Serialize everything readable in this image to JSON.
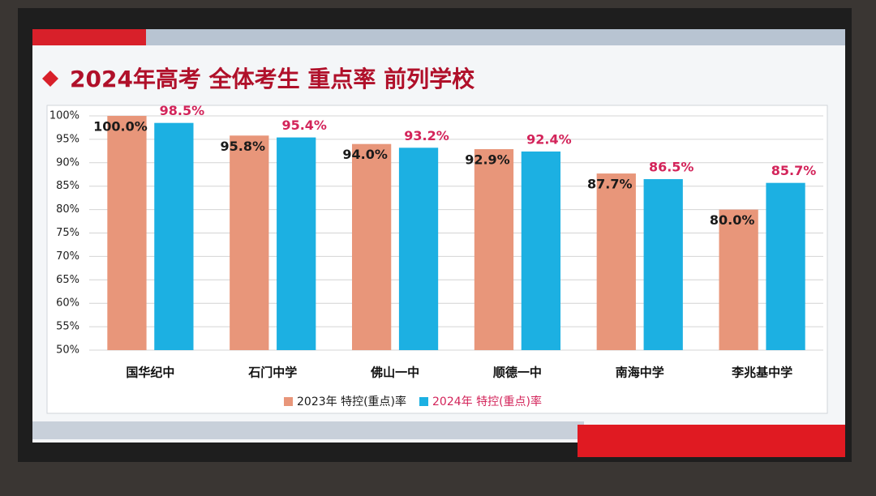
{
  "chart_data": {
    "type": "bar",
    "title": "2024年高考 全体考生 重点率 前列学校",
    "categories": [
      "国华纪中",
      "石门中学",
      "佛山一中",
      "顺德一中",
      "南海中学",
      "李兆基中学"
    ],
    "series": [
      {
        "name": "2023年 特控(重点)率",
        "color": "#e8967a",
        "label_color": "#1a1a1a",
        "values": [
          100.0,
          95.8,
          94.0,
          92.9,
          87.7,
          80.0
        ],
        "value_labels": [
          "100.0%",
          "95.8%",
          "94.0%",
          "92.9%",
          "87.7%",
          "80.0%"
        ]
      },
      {
        "name": "2024年 特控(重点)率",
        "color": "#1cb0e2",
        "label_color": "#d3245a",
        "values": [
          98.5,
          95.4,
          93.2,
          92.4,
          86.5,
          85.7
        ],
        "value_labels": [
          "98.5%",
          "95.4%",
          "93.2%",
          "92.4%",
          "86.5%",
          "85.7%"
        ]
      }
    ],
    "ylim": [
      50,
      100
    ],
    "yticks": [
      {
        "value": 50,
        "label": "50%"
      },
      {
        "value": 55,
        "label": "55%"
      },
      {
        "value": 60,
        "label": "60%"
      },
      {
        "value": 65,
        "label": "65%"
      },
      {
        "value": 70,
        "label": "70%"
      },
      {
        "value": 75,
        "label": "75%"
      },
      {
        "value": 80,
        "label": "80%"
      },
      {
        "value": 85,
        "label": "85%"
      },
      {
        "value": 90,
        "label": "90%"
      },
      {
        "value": 95,
        "label": "95%"
      },
      {
        "value": 100,
        "label": "100%"
      }
    ],
    "grid": true
  }
}
